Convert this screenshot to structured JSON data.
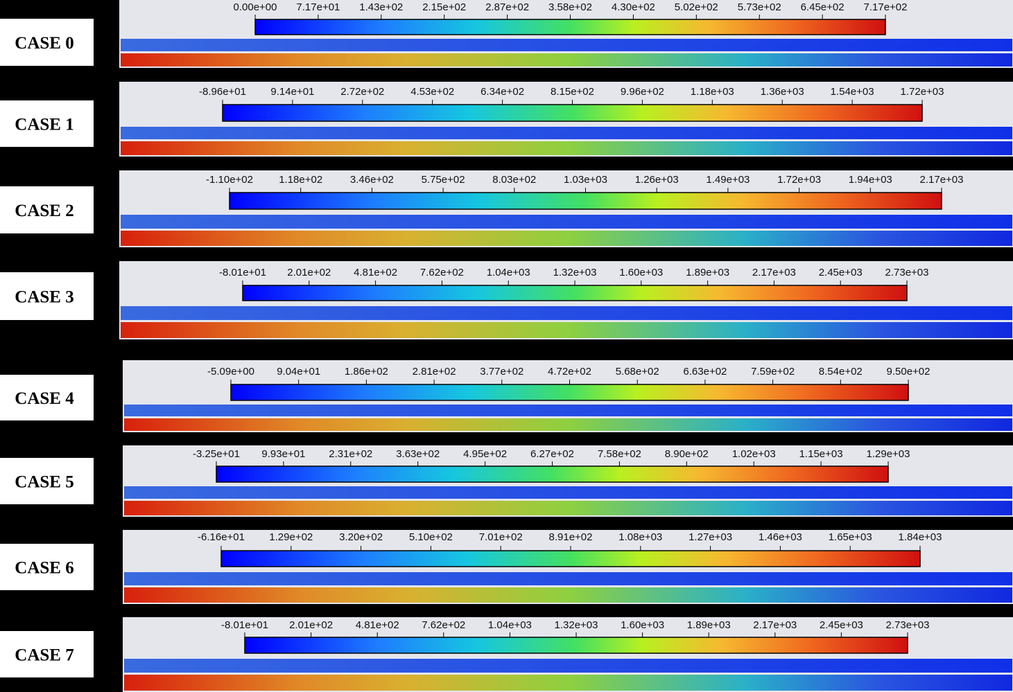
{
  "panels": [
    {
      "label": "CASE 0",
      "ticks": [
        "0.00e+00",
        "7.17e+01",
        "1.43e+02",
        "2.15e+02",
        "2.87e+02",
        "3.58e+02",
        "4.30e+02",
        "5.02e+02",
        "5.73e+02",
        "6.45e+02",
        "7.17e+02"
      ]
    },
    {
      "label": "CASE 1",
      "ticks": [
        "-8.96e+01",
        "9.14e+01",
        "2.72e+02",
        "4.53e+02",
        "6.34e+02",
        "8.15e+02",
        "9.96e+02",
        "1.18e+03",
        "1.36e+03",
        "1.54e+03",
        "1.72e+03"
      ]
    },
    {
      "label": "CASE 2",
      "ticks": [
        "-1.10e+02",
        "1.18e+02",
        "3.46e+02",
        "5.75e+02",
        "8.03e+02",
        "1.03e+03",
        "1.26e+03",
        "1.49e+03",
        "1.72e+03",
        "1.94e+03",
        "2.17e+03"
      ]
    },
    {
      "label": "CASE 3",
      "ticks": [
        "-8.01e+01",
        "2.01e+02",
        "4.81e+02",
        "7.62e+02",
        "1.04e+03",
        "1.32e+03",
        "1.60e+03",
        "1.89e+03",
        "2.17e+03",
        "2.45e+03",
        "2.73e+03"
      ]
    },
    {
      "label": "CASE 4",
      "ticks": [
        "-5.09e+00",
        "9.04e+01",
        "1.86e+02",
        "2.81e+02",
        "3.77e+02",
        "4.72e+02",
        "5.68e+02",
        "6.63e+02",
        "7.59e+02",
        "8.54e+02",
        "9.50e+02"
      ]
    },
    {
      "label": "CASE 5",
      "ticks": [
        "-3.25e+01",
        "9.93e+01",
        "2.31e+02",
        "3.63e+02",
        "4.95e+02",
        "6.27e+02",
        "7.58e+02",
        "8.90e+02",
        "1.02e+03",
        "1.15e+03",
        "1.29e+03"
      ]
    },
    {
      "label": "CASE 6",
      "ticks": [
        "-6.16e+01",
        "1.29e+02",
        "3.20e+02",
        "5.10e+02",
        "7.01e+02",
        "8.91e+02",
        "1.08e+03",
        "1.27e+03",
        "1.46e+03",
        "1.65e+03",
        "1.84e+03"
      ]
    },
    {
      "label": "CASE 7",
      "ticks": [
        "-8.01e+01",
        "2.01e+02",
        "4.81e+02",
        "7.62e+02",
        "1.04e+03",
        "1.32e+03",
        "1.60e+03",
        "1.89e+03",
        "2.17e+03",
        "2.45e+03",
        "2.73e+03"
      ]
    }
  ]
}
